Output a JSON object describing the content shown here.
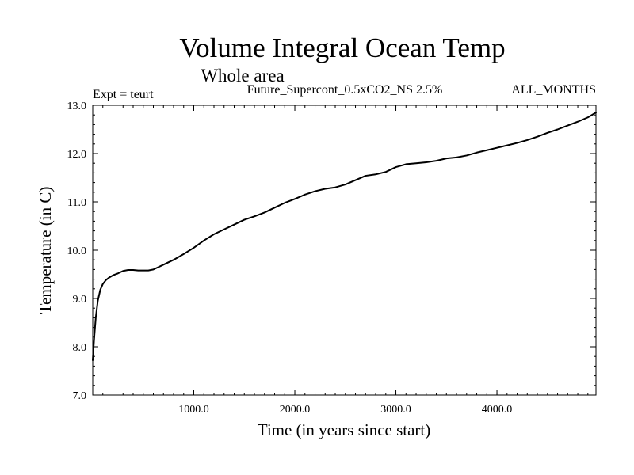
{
  "chart_data": {
    "type": "line",
    "title": "Volume Integral Ocean Temp",
    "subtitle": "Whole area",
    "experiment_label": "Expt = teurt",
    "run_label": "Future_Supercont_0.5xCO2_NS 2.5%",
    "period_label": "ALL_MONTHS",
    "xlabel": "Time (in years since start)",
    "ylabel": "Temperature (in C)",
    "xlim": [
      0,
      4980
    ],
    "ylim": [
      7.0,
      13.0
    ],
    "x_ticks": [
      {
        "value": 1000,
        "label": "1000.0"
      },
      {
        "value": 2000,
        "label": "2000.0"
      },
      {
        "value": 3000,
        "label": "3000.0"
      },
      {
        "value": 4000,
        "label": "4000.0"
      }
    ],
    "y_ticks": [
      {
        "value": 7.0,
        "label": "7.0"
      },
      {
        "value": 8.0,
        "label": "8.0"
      },
      {
        "value": 9.0,
        "label": "9.0"
      },
      {
        "value": 10.0,
        "label": "10.0"
      },
      {
        "value": 11.0,
        "label": "11.0"
      },
      {
        "value": 12.0,
        "label": "12.0"
      },
      {
        "value": 13.0,
        "label": "13.0"
      }
    ],
    "grid": false,
    "series": [
      {
        "color": "#000000",
        "x": [
          0,
          15,
          30,
          50,
          75,
          100,
          130,
          160,
          200,
          250,
          300,
          350,
          400,
          450,
          500,
          550,
          600,
          650,
          700,
          800,
          900,
          1000,
          1100,
          1200,
          1300,
          1400,
          1500,
          1600,
          1700,
          1800,
          1900,
          2000,
          2100,
          2200,
          2300,
          2400,
          2500,
          2600,
          2700,
          2800,
          2900,
          3000,
          3100,
          3200,
          3300,
          3400,
          3500,
          3600,
          3700,
          3800,
          3900,
          4000,
          4100,
          4200,
          4300,
          4400,
          4500,
          4600,
          4700,
          4800,
          4900,
          4980
        ],
        "values": [
          7.72,
          8.2,
          8.6,
          8.95,
          9.18,
          9.3,
          9.38,
          9.43,
          9.48,
          9.52,
          9.57,
          9.59,
          9.59,
          9.58,
          9.58,
          9.58,
          9.6,
          9.65,
          9.7,
          9.8,
          9.92,
          10.05,
          10.2,
          10.33,
          10.43,
          10.53,
          10.63,
          10.7,
          10.78,
          10.88,
          10.98,
          11.06,
          11.15,
          11.22,
          11.27,
          11.3,
          11.36,
          11.45,
          11.54,
          11.57,
          11.62,
          11.72,
          11.78,
          11.8,
          11.82,
          11.85,
          11.9,
          11.92,
          11.96,
          12.02,
          12.07,
          12.12,
          12.17,
          12.22,
          12.28,
          12.35,
          12.43,
          12.5,
          12.58,
          12.66,
          12.75,
          12.85
        ]
      }
    ]
  }
}
